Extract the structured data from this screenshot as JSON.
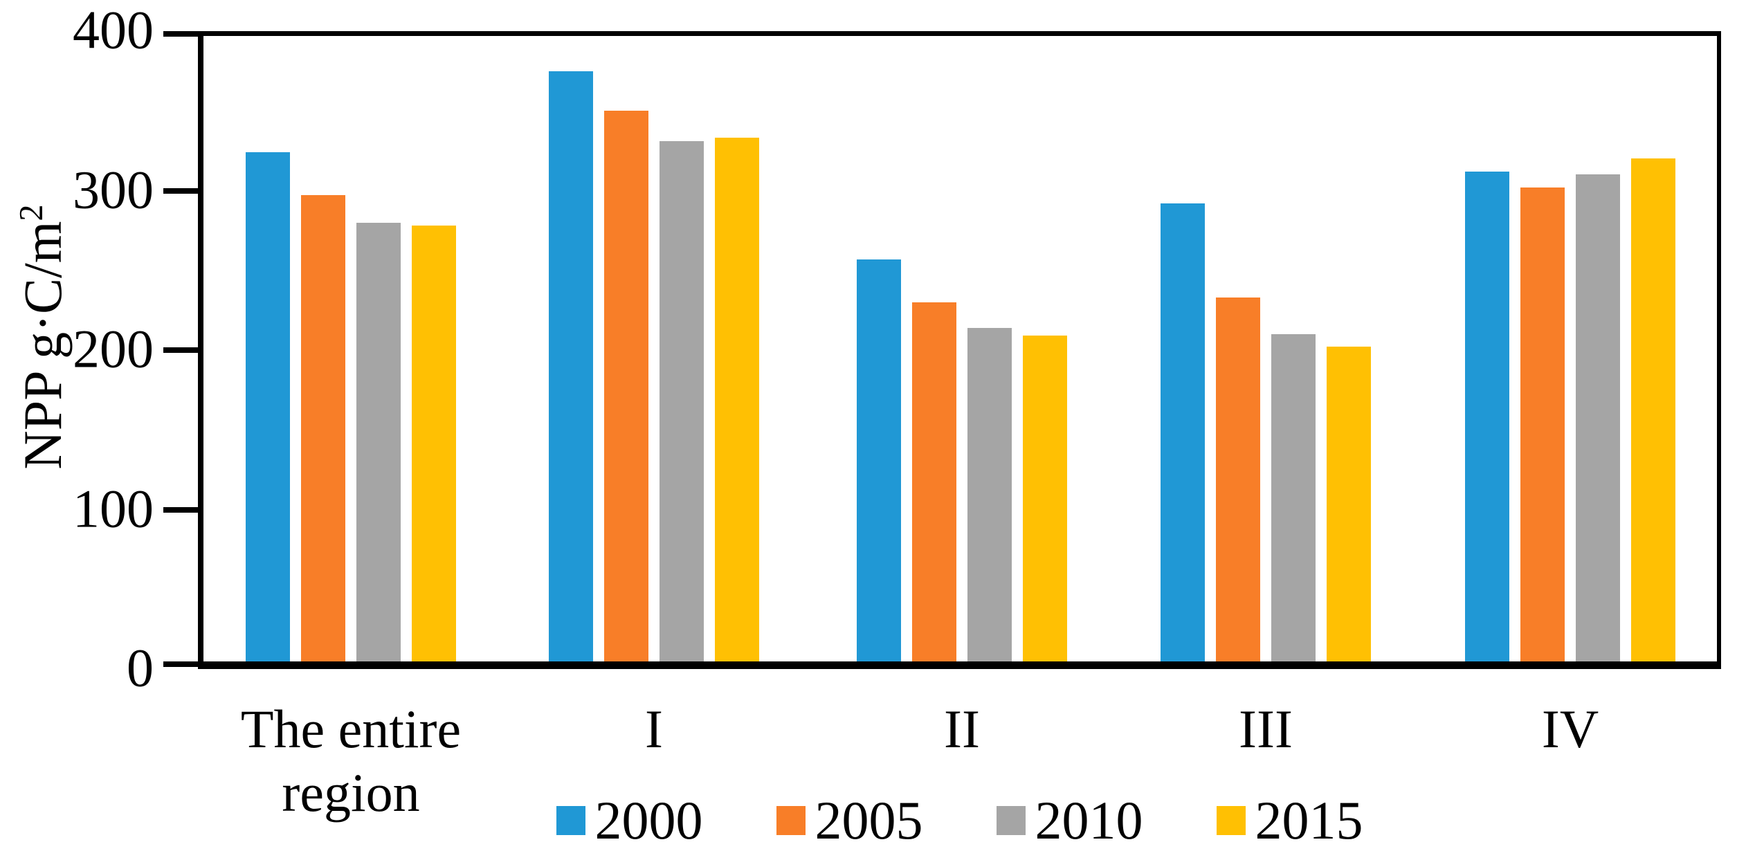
{
  "figure": {
    "description": "Grouped bar chart of NPP by sub-region for four years"
  },
  "y_axis": {
    "title_main": "NPP g·C/m",
    "title_sup": "2",
    "tick_labels": [
      "400",
      "300",
      "200",
      "100",
      "0"
    ]
  },
  "chart_data": {
    "type": "bar",
    "title": "",
    "xlabel": "",
    "ylabel": "NPP g·C/m²",
    "ylim": [
      0,
      400
    ],
    "yticks": [
      0,
      100,
      200,
      300,
      400
    ],
    "grid": false,
    "legend_position": "bottom",
    "categories": [
      "The entire region",
      "I",
      "II",
      "III",
      "IV"
    ],
    "series": [
      {
        "name": "2000",
        "color": "#2098D5",
        "values": [
          324,
          375,
          257,
          292,
          312
        ]
      },
      {
        "name": "2005",
        "color": "#F87E28",
        "values": [
          297,
          350,
          230,
          233,
          302
        ]
      },
      {
        "name": "2010",
        "color": "#A5A5A5",
        "values": [
          280,
          331,
          214,
          210,
          310
        ]
      },
      {
        "name": "2015",
        "color": "#FFC003",
        "values": [
          278,
          333,
          209,
          202,
          320
        ]
      }
    ]
  }
}
